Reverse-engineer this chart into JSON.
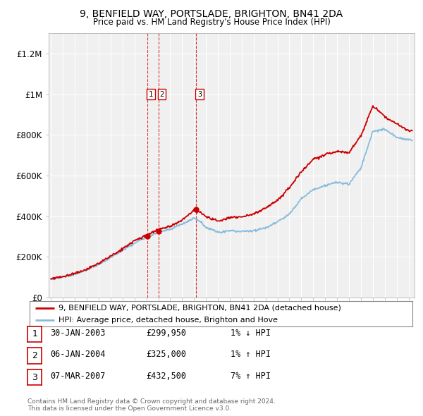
{
  "title": "9, BENFIELD WAY, PORTSLADE, BRIGHTON, BN41 2DA",
  "subtitle": "Price paid vs. HM Land Registry's House Price Index (HPI)",
  "ylabel_ticks": [
    "£0",
    "£200K",
    "£400K",
    "£600K",
    "£800K",
    "£1M",
    "£1.2M"
  ],
  "ytick_values": [
    0,
    200000,
    400000,
    600000,
    800000,
    1000000,
    1200000
  ],
  "ylim": [
    0,
    1300000
  ],
  "xlim_start": 1994.8,
  "xlim_end": 2025.5,
  "sale_color": "#cc0000",
  "hpi_color": "#88bbdd",
  "sale_dates": [
    2003.08,
    2004.02,
    2007.18
  ],
  "sale_prices": [
    299950,
    325000,
    432500
  ],
  "sale_labels": [
    "1",
    "2",
    "3"
  ],
  "vline_color": "#cc0000",
  "legend_sale_label": "9, BENFIELD WAY, PORTSLADE, BRIGHTON, BN41 2DA (detached house)",
  "legend_hpi_label": "HPI: Average price, detached house, Brighton and Hove",
  "table_data": [
    [
      "1",
      "30-JAN-2003",
      "£299,950",
      "1% ↓ HPI"
    ],
    [
      "2",
      "06-JAN-2004",
      "£325,000",
      "1% ↑ HPI"
    ],
    [
      "3",
      "07-MAR-2007",
      "£432,500",
      "7% ↑ HPI"
    ]
  ],
  "footer": "Contains HM Land Registry data © Crown copyright and database right 2024.\nThis data is licensed under the Open Government Licence v3.0.",
  "background_color": "#ffffff",
  "plot_bg_color": "#f0f0f0",
  "grid_color": "#ffffff"
}
